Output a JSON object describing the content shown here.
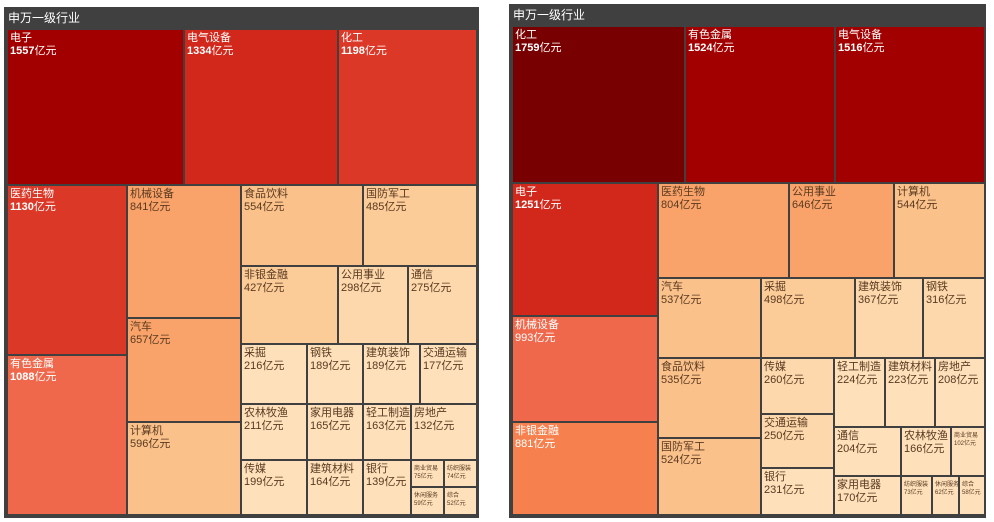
{
  "chart_data": [
    {
      "type": "treemap",
      "title": "申万一级行业",
      "unit": "亿元",
      "items": [
        {
          "name": "电子",
          "value": 1557
        },
        {
          "name": "电气设备",
          "value": 1334
        },
        {
          "name": "化工",
          "value": 1198
        },
        {
          "name": "医药生物",
          "value": 1130
        },
        {
          "name": "有色金属",
          "value": 1088
        },
        {
          "name": "机械设备",
          "value": 841
        },
        {
          "name": "汽车",
          "value": 657
        },
        {
          "name": "计算机",
          "value": 596
        },
        {
          "name": "食品饮料",
          "value": 554
        },
        {
          "name": "国防军工",
          "value": 485
        },
        {
          "name": "非银金融",
          "value": 427
        },
        {
          "name": "公用事业",
          "value": 298
        },
        {
          "name": "通信",
          "value": 275
        },
        {
          "name": "采掘",
          "value": 216
        },
        {
          "name": "钢铁",
          "value": 189
        },
        {
          "name": "建筑装饰",
          "value": 189
        },
        {
          "name": "交通运输",
          "value": 177
        },
        {
          "name": "农林牧渔",
          "value": 211
        },
        {
          "name": "家用电器",
          "value": 165
        },
        {
          "name": "轻工制造",
          "value": 163
        },
        {
          "name": "房地产",
          "value": 132
        },
        {
          "name": "传媒",
          "value": 199
        },
        {
          "name": "建筑材料",
          "value": 164
        },
        {
          "name": "银行",
          "value": 139
        },
        {
          "name": "商业贸易",
          "value": 75
        },
        {
          "name": "纺织服装",
          "value": 74
        },
        {
          "name": "休闲服务",
          "value": 59
        },
        {
          "name": "综合",
          "value": 52
        }
      ]
    },
    {
      "type": "treemap",
      "title": "申万一级行业",
      "unit": "亿元",
      "items": [
        {
          "name": "化工",
          "value": 1759
        },
        {
          "name": "有色金属",
          "value": 1524
        },
        {
          "name": "电气设备",
          "value": 1516
        },
        {
          "name": "电子",
          "value": 1251
        },
        {
          "name": "机械设备",
          "value": 993
        },
        {
          "name": "非银金融",
          "value": 881
        },
        {
          "name": "医药生物",
          "value": 804
        },
        {
          "name": "公用事业",
          "value": 646
        },
        {
          "name": "计算机",
          "value": 544
        },
        {
          "name": "汽车",
          "value": 537
        },
        {
          "name": "采掘",
          "value": 498
        },
        {
          "name": "建筑装饰",
          "value": 367
        },
        {
          "name": "钢铁",
          "value": 316
        },
        {
          "name": "食品饮料",
          "value": 535
        },
        {
          "name": "国防军工",
          "value": 524
        },
        {
          "name": "传媒",
          "value": 260
        },
        {
          "name": "交通运输",
          "value": 250
        },
        {
          "name": "银行",
          "value": 231
        },
        {
          "name": "轻工制造",
          "value": 224
        },
        {
          "name": "建筑材料",
          "value": 223
        },
        {
          "name": "房地产",
          "value": 208
        },
        {
          "name": "通信",
          "value": 204
        },
        {
          "name": "农林牧渔",
          "value": 166
        },
        {
          "name": "商业贸易",
          "value": 102
        },
        {
          "name": "家用电器",
          "value": 170
        },
        {
          "name": "纺织服装",
          "value": 73
        },
        {
          "name": "休闲服务",
          "value": 62
        },
        {
          "name": "综合",
          "value": 58
        }
      ]
    }
  ]
}
